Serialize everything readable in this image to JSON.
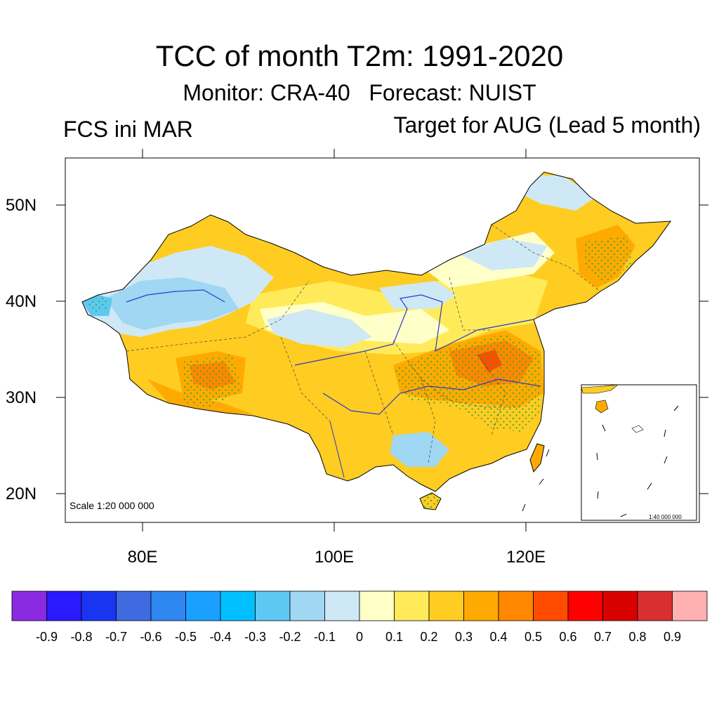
{
  "header": {
    "title": "TCC of month T2m: 1991-2020",
    "subtitle": "Monitor: CRA-40   Forecast: NUIST",
    "left_label": "FCS ini MAR",
    "right_label": "Target for AUG (Lead 5 month)"
  },
  "map": {
    "lat_labels": [
      "50N",
      "40N",
      "30N",
      "20N"
    ],
    "lon_labels": [
      "80E",
      "100E",
      "120E"
    ],
    "scale_label": "Scale 1:20 000 000",
    "inset_scale_label": "1:40 000 000"
  },
  "colorbar": {
    "colors": [
      "#8a2be2",
      "#2a1aff",
      "#1a35f2",
      "#3f6ae0",
      "#2e86f0",
      "#1aa0ff",
      "#00bfff",
      "#5ec8f2",
      "#a0d7f2",
      "#cfe8f6",
      "#ffffc8",
      "#ffeb5a",
      "#ffcc22",
      "#ffaa00",
      "#ff8800",
      "#ff4c00",
      "#ff0000",
      "#d90000",
      "#d83030",
      "#ffb0b0"
    ],
    "labels": [
      "-0.9",
      "-0.8",
      "-0.7",
      "-0.6",
      "-0.5",
      "-0.4",
      "-0.3",
      "-0.2",
      "-0.1",
      "0",
      "0.1",
      "0.2",
      "0.3",
      "0.4",
      "0.5",
      "0.6",
      "0.7",
      "0.8",
      "0.9"
    ]
  }
}
